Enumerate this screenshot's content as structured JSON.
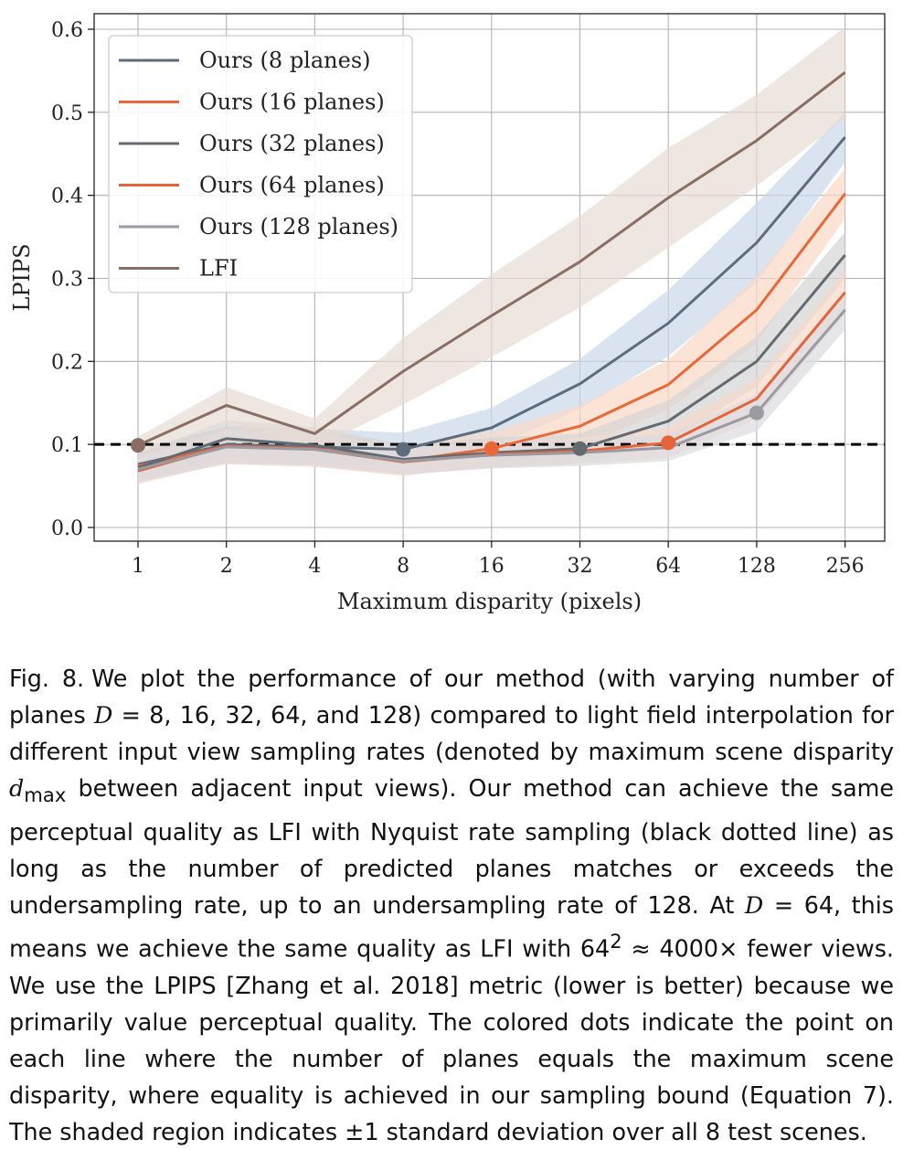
{
  "chart_data": {
    "type": "line",
    "xlabel": "Maximum disparity (pixels)",
    "ylabel": "LPIPS",
    "categories": [
      "1",
      "2",
      "4",
      "8",
      "16",
      "32",
      "64",
      "128",
      "256"
    ],
    "y_ticks": [
      "0.0",
      "0.1",
      "0.2",
      "0.3",
      "0.4",
      "0.5",
      "0.6"
    ],
    "ylim": [
      0,
      0.6
    ],
    "grid": true,
    "legend_position": "upper-left",
    "reference_line": {
      "y": 0.1,
      "style": "dashed",
      "color": "#000000"
    },
    "series": [
      {
        "name": "Ours (8 planes)",
        "color": "#5d6d7e",
        "band_color": "#c9d9ea",
        "values": [
          0.076,
          0.1,
          0.097,
          0.094,
          0.12,
          0.173,
          0.246,
          0.343,
          0.47
        ],
        "std": [
          0.018,
          0.022,
          0.022,
          0.02,
          0.024,
          0.03,
          0.04,
          0.048,
          0.03
        ],
        "marker_index": 3
      },
      {
        "name": "Ours (16 planes)",
        "color": "#e8683a",
        "band_color": "#fad9c4",
        "values": [
          0.074,
          0.098,
          0.095,
          0.08,
          0.095,
          0.122,
          0.172,
          0.262,
          0.402
        ],
        "std": [
          0.018,
          0.022,
          0.022,
          0.018,
          0.02,
          0.025,
          0.03,
          0.04,
          0.03
        ],
        "marker_index": 4
      },
      {
        "name": "Ours (32 planes)",
        "color": "#636a70",
        "band_color": "#d4d4d4",
        "values": [
          0.072,
          0.107,
          0.099,
          0.082,
          0.09,
          0.095,
          0.128,
          0.2,
          0.328
        ],
        "std": [
          0.017,
          0.022,
          0.022,
          0.018,
          0.018,
          0.018,
          0.025,
          0.03,
          0.028
        ],
        "marker_index": 5
      },
      {
        "name": "Ours (64 planes)",
        "color": "#e5643a",
        "band_color": "#f6d8ca",
        "values": [
          0.068,
          0.098,
          0.094,
          0.079,
          0.088,
          0.092,
          0.102,
          0.155,
          0.283
        ],
        "std": [
          0.016,
          0.02,
          0.02,
          0.016,
          0.016,
          0.016,
          0.018,
          0.024,
          0.026
        ],
        "marker_index": 6
      },
      {
        "name": "Ours (128 planes)",
        "color": "#9a9aa2",
        "band_color": "#dcdbe0",
        "values": [
          0.07,
          0.097,
          0.094,
          0.08,
          0.087,
          0.09,
          0.096,
          0.138,
          0.262
        ],
        "std": [
          0.016,
          0.02,
          0.02,
          0.016,
          0.016,
          0.016,
          0.016,
          0.022,
          0.024
        ],
        "marker_index": 7
      },
      {
        "name": "LFI",
        "color": "#8c6d62",
        "band_color": "#e6dbd4",
        "values": [
          0.099,
          0.147,
          0.113,
          0.188,
          0.255,
          0.32,
          0.397,
          0.466,
          0.548
        ],
        "std": [
          0.01,
          0.022,
          0.018,
          0.04,
          0.05,
          0.055,
          0.06,
          0.055,
          0.055
        ],
        "marker_index": 0
      }
    ]
  },
  "caption": {
    "fig_label": "Fig. 8.",
    "p1": "We plot the performance of our method (with varying number of planes ",
    "D": "D",
    "p2": " = 8, 16, 32, 64, and 128) compared to light field interpolation for different input view sampling rates (denoted by maximum scene disparity ",
    "d": "d",
    "max": "max",
    "p3": " between adjacent input views). Our method can achieve the same perceptual quality as LFI with Nyquist rate sampling (black dotted line) as long as the number of predicted planes matches or exceeds the undersampling rate, up to an undersampling rate of 128. At ",
    "D2": "D",
    "p4": " = 64, this means we achieve the same quality as LFI with 64",
    "sup": "2",
    "p5": " ≈ 4000× fewer views. We use the LPIPS [Zhang et al. 2018] metric (lower is better) because we primarily value perceptual quality. The colored dots indicate the point on each line where the number of planes equals the maximum scene disparity, where equality is achieved in our sampling bound (Equation 7). The shaded region indicates ±1 standard deviation over all 8 test scenes."
  }
}
